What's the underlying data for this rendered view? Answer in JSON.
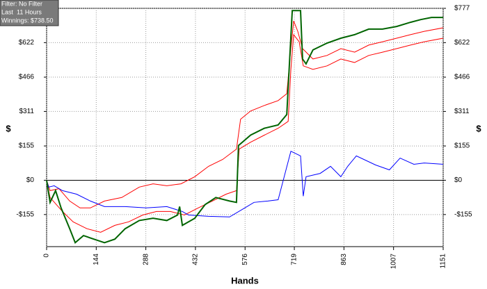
{
  "chart_data": {
    "type": "line",
    "info": [
      "Filter: No Filter",
      "Last  11 Hours",
      "Winnings: $738.50"
    ],
    "xlabel": "Hands",
    "ylabel": "$",
    "xlim": [
      0,
      1151
    ],
    "xticks": [
      0,
      144,
      288,
      432,
      576,
      719,
      863,
      1007,
      1151
    ],
    "ylim": [
      -300,
      777
    ],
    "yticks": [
      {
        "value": -155,
        "label": "-$155"
      },
      {
        "value": 0,
        "label": "$0"
      },
      {
        "value": 155,
        "label": "$155"
      },
      {
        "value": 311,
        "label": "$311"
      },
      {
        "value": 466,
        "label": "$466"
      },
      {
        "value": 622,
        "label": "$622"
      },
      {
        "value": 777,
        "label": "$777"
      }
    ],
    "grid": true,
    "series": [
      {
        "color": "#ff0000",
        "x": [
          0,
          10,
          36,
          67,
          97,
          127,
          168,
          218,
          269,
          309,
          349,
          390,
          430,
          470,
          511,
          551,
          563,
          592,
          632,
          672,
          697,
          709,
          717,
          729,
          743,
          773,
          814,
          854,
          894,
          935,
          975,
          1016,
          1056,
          1096,
          1151
        ],
        "values": [
          0,
          -47,
          -38,
          -94,
          -125,
          -125,
          -94,
          -78,
          -31,
          -16,
          -25,
          -16,
          16,
          63,
          94,
          141,
          276,
          313,
          338,
          360,
          391,
          595,
          720,
          673,
          595,
          548,
          564,
          595,
          579,
          611,
          626,
          642,
          658,
          673,
          689
        ]
      },
      {
        "color": "#ff0000",
        "x": [
          0,
          10,
          46,
          77,
          117,
          157,
          198,
          238,
          279,
          319,
          359,
          400,
          440,
          481,
          521,
          551,
          559,
          592,
          632,
          672,
          701,
          709,
          717,
          733,
          745,
          773,
          814,
          854,
          894,
          935,
          975,
          1016,
          1056,
          1096,
          1151
        ],
        "values": [
          0,
          -78,
          -141,
          -188,
          -219,
          -235,
          -204,
          -188,
          -157,
          -141,
          -141,
          -157,
          -125,
          -94,
          -63,
          -47,
          141,
          172,
          204,
          235,
          266,
          501,
          658,
          626,
          517,
          501,
          517,
          548,
          532,
          564,
          579,
          595,
          611,
          626,
          642
        ]
      },
      {
        "color": "#0000ff",
        "x": [
          0,
          6,
          22,
          46,
          87,
          127,
          168,
          228,
          289,
          349,
          394,
          412,
          470,
          531,
          575,
          602,
          642,
          672,
          709,
          737,
          745,
          753,
          794,
          824,
          854,
          874,
          899,
          955,
          995,
          1026,
          1066,
          1096,
          1151
        ],
        "values": [
          0,
          -31,
          -25,
          -47,
          -63,
          -94,
          -119,
          -119,
          -125,
          -119,
          -141,
          -157,
          -163,
          -166,
          -125,
          -100,
          -94,
          -88,
          131,
          110,
          -72,
          16,
          31,
          63,
          16,
          63,
          110,
          69,
          47,
          100,
          72,
          78,
          72
        ]
      },
      {
        "color": "#006400",
        "x": [
          0,
          10,
          26,
          42,
          67,
          83,
          107,
          137,
          168,
          198,
          228,
          269,
          309,
          349,
          380,
          386,
          394,
          430,
          460,
          491,
          531,
          551,
          557,
          592,
          632,
          672,
          697,
          705,
          713,
          737,
          743,
          753,
          773,
          814,
          854,
          894,
          935,
          975,
          1016,
          1056,
          1086,
          1117,
          1151
        ],
        "values": [
          0,
          -100,
          -47,
          -125,
          -219,
          -282,
          -250,
          -266,
          -282,
          -266,
          -219,
          -182,
          -172,
          -182,
          -157,
          -119,
          -204,
          -172,
          -110,
          -78,
          -94,
          -100,
          157,
          204,
          235,
          250,
          297,
          532,
          767,
          767,
          548,
          526,
          589,
          620,
          642,
          658,
          683,
          683,
          695,
          714,
          726,
          736,
          736
        ]
      }
    ]
  }
}
